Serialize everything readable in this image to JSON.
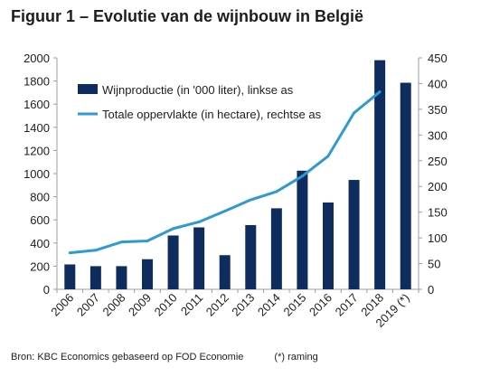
{
  "header": {
    "title": "Figuur 1 – Evolutie van de wijnbouw in België"
  },
  "footer": {
    "source": "Bron:  KBC Economics gebaseerd op FOD Economie",
    "note": "(*) raming"
  },
  "chart_data": {
    "type": "bar+line",
    "categories": [
      "2006",
      "2007",
      "2008",
      "2009",
      "2010",
      "2011",
      "2012",
      "2013",
      "2014",
      "2015",
      "2016",
      "2017",
      "2018",
      "2019 (*)"
    ],
    "series": [
      {
        "name": "Wijnproductie (in '000 liter), linkse as",
        "type": "bar",
        "axis": "left",
        "values": [
          215,
          200,
          200,
          260,
          465,
          535,
          295,
          555,
          700,
          1025,
          750,
          945,
          1980,
          1785
        ]
      },
      {
        "name": "Totale oppervlakte (in hectare), rechtse as",
        "type": "line",
        "axis": "right",
        "values": [
          71,
          76,
          92,
          94,
          118,
          131,
          152,
          174,
          190,
          220,
          259,
          343,
          384,
          null
        ]
      }
    ],
    "ylim_left": [
      0,
      2000
    ],
    "yticks_left": [
      0,
      200,
      400,
      600,
      800,
      1000,
      1200,
      1400,
      1600,
      1800,
      2000
    ],
    "ylim_right": [
      0,
      450
    ],
    "yticks_right": [
      0,
      50,
      100,
      150,
      200,
      250,
      300,
      350,
      400,
      450
    ],
    "legend_position": "top-left",
    "grid": false,
    "colors": {
      "bar": "#0e2c5e",
      "line": "#2e9ad0",
      "axis": "#9c9c9c",
      "text": "#1d1d1b"
    }
  }
}
